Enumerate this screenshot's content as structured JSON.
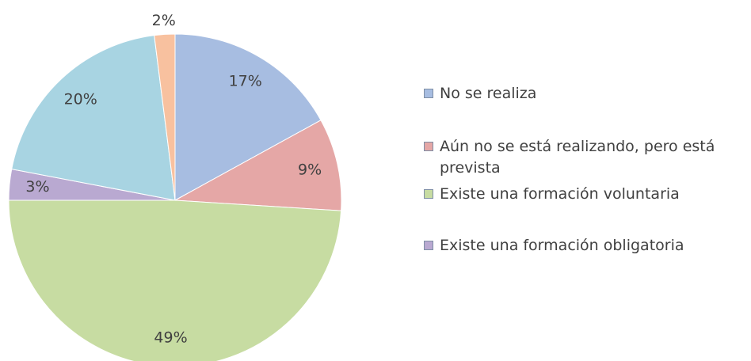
{
  "chart_data": {
    "type": "pie",
    "categories": [
      "No se realiza",
      "Aún no se está realizando, pero está prevista",
      "Existe una formación voluntaria",
      "Existe una formación obligatoria",
      null,
      null
    ],
    "values": [
      17,
      9,
      49,
      3,
      20,
      2
    ],
    "value_labels": [
      "17%",
      "9%",
      "49%",
      "3%",
      "20%",
      "2%"
    ],
    "colors": [
      "#a7bde1",
      "#e5a7a6",
      "#c7dca2",
      "#b9a9d1",
      "#a8d4e2",
      "#f8c19f"
    ]
  }
}
